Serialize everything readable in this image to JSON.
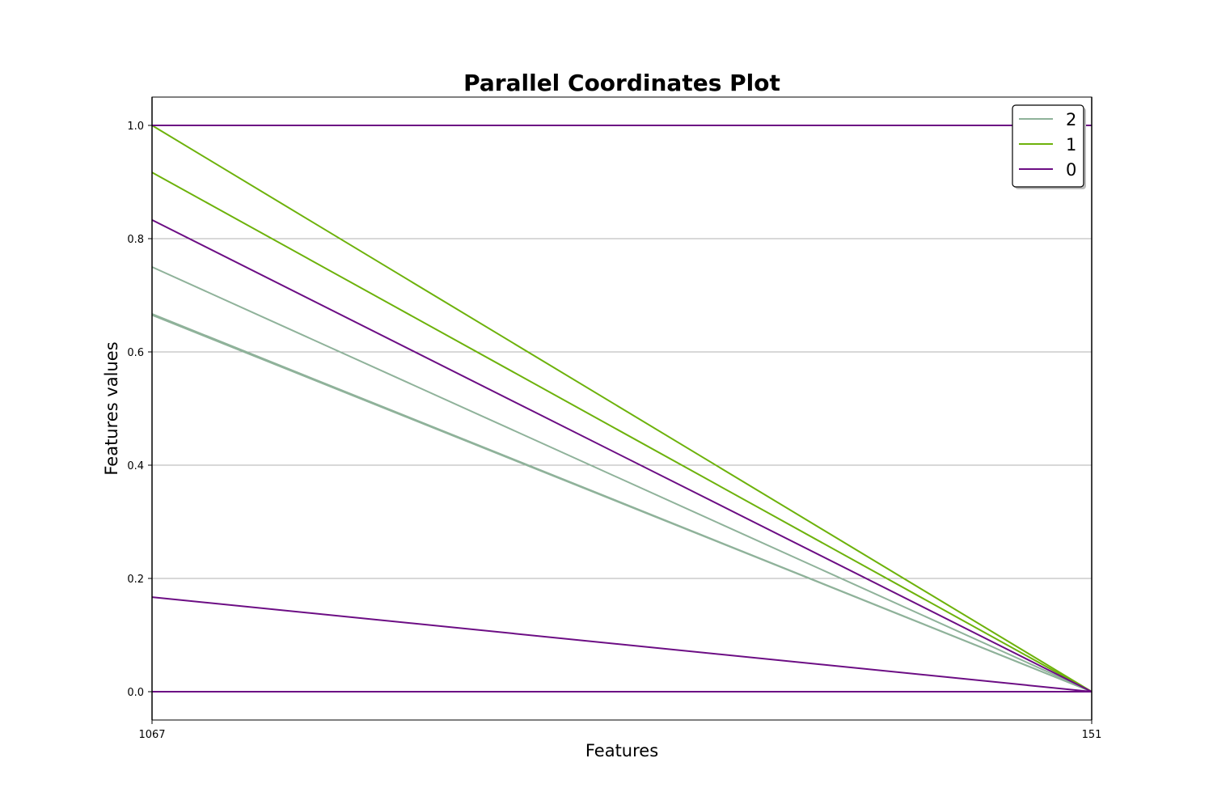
{
  "chart_data": {
    "type": "parallel-coordinates",
    "title": "Parallel Coordinates Plot",
    "xlabel": "Features",
    "ylabel": "Features values",
    "features": [
      "1067",
      "151"
    ],
    "ylim": [
      -0.05,
      1.05
    ],
    "yticks": [
      "0.0",
      "0.2",
      "0.4",
      "0.6",
      "0.8",
      "1.0"
    ],
    "grid": "horizontal",
    "legend_placement": "top-right",
    "series": [
      {
        "name": "2",
        "color": "#8fb29a",
        "values": [
          0.75,
          0.0
        ]
      },
      {
        "name": "2",
        "color": "#8fb29a",
        "values": [
          0.667,
          0.0
        ]
      },
      {
        "name": "2",
        "color": "#8fb29a",
        "values": [
          0.665,
          0.0
        ]
      },
      {
        "name": "1",
        "color": "#6db20b",
        "values": [
          1.0,
          0.0
        ]
      },
      {
        "name": "1",
        "color": "#6db20b",
        "values": [
          0.917,
          0.0
        ]
      },
      {
        "name": "0",
        "color": "#6c0d84",
        "values": [
          0.833,
          0.0
        ]
      },
      {
        "name": "0",
        "color": "#6c0d84",
        "values": [
          0.167,
          0.0
        ]
      },
      {
        "name": "0",
        "color": "#6c0d84",
        "values": [
          1.0,
          1.0
        ]
      },
      {
        "name": "0",
        "color": "#6c0d84",
        "values": [
          0.0,
          0.0
        ]
      }
    ],
    "legend": [
      {
        "label": "2",
        "color": "#8fb29a"
      },
      {
        "label": "1",
        "color": "#6db20b"
      },
      {
        "label": "0",
        "color": "#6c0d84"
      }
    ]
  }
}
